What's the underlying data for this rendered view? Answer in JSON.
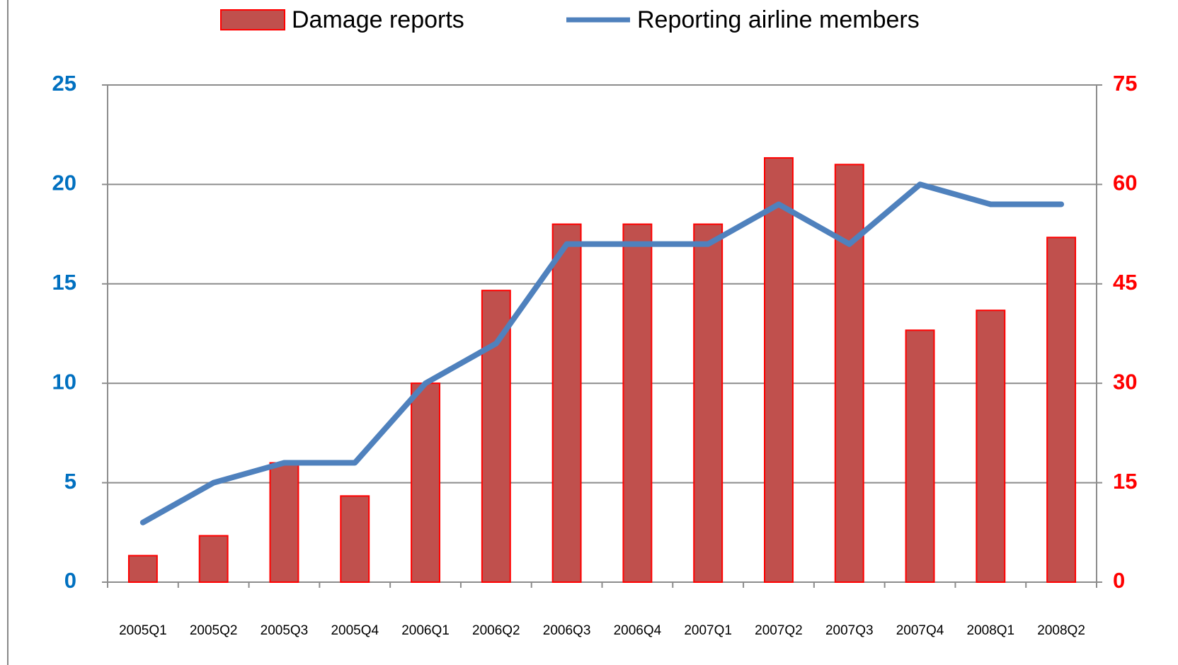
{
  "chart_data": {
    "type": "bar_line",
    "categories": [
      "2005Q1",
      "2005Q2",
      "2005Q3",
      "2005Q4",
      "2006Q1",
      "2006Q2",
      "2006Q3",
      "2006Q4",
      "2007Q1",
      "2007Q2",
      "2007Q3",
      "2007Q4",
      "2008Q1",
      "2008Q2"
    ],
    "series": [
      {
        "name": "Damage reports",
        "type": "bar",
        "color": "#c0504d",
        "edgecolor": "#ff0000",
        "axis": "y2",
        "values": [
          4,
          7,
          18,
          13,
          30,
          44,
          54,
          54,
          54,
          64,
          63,
          38,
          41,
          52
        ]
      },
      {
        "name": "Reporting airline members",
        "type": "line",
        "color": "#4f81bd",
        "axis": "y",
        "values": [
          3,
          5,
          6,
          6,
          10,
          12,
          17,
          17,
          17,
          19,
          17,
          20,
          19,
          19
        ]
      }
    ],
    "ylim": [
      0,
      25
    ],
    "yticks": [
      0,
      5,
      10,
      15,
      20,
      25
    ],
    "y2lim": [
      0,
      75
    ],
    "y2ticks": [
      0,
      15,
      30,
      45,
      60,
      75
    ],
    "grid": true,
    "legend": "top"
  }
}
